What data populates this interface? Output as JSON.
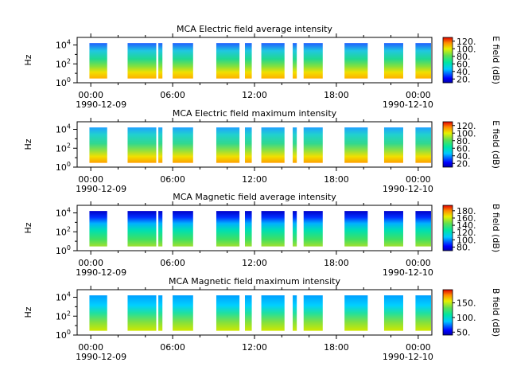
{
  "chart_data": {
    "type": "heatmap",
    "x_ticks": [
      "00:00",
      "06:00",
      "12:00",
      "18:00",
      "00:00"
    ],
    "x_range_hours": [
      -1,
      25
    ],
    "y_ticks": [
      {
        "base": "10",
        "exp": "0"
      },
      {
        "base": "10",
        "exp": "2"
      },
      {
        "base": "10",
        "exp": "4"
      }
    ],
    "y_range_log10": [
      0,
      4.8
    ],
    "x_label_left": "1990-12-09",
    "x_label_right": "1990-12-10",
    "ylabel": "Hz",
    "data_intervals_hours": [
      [
        -0.1,
        1.2
      ],
      [
        2.7,
        4.8
      ],
      [
        4.95,
        5.25
      ],
      [
        6.0,
        7.5
      ],
      [
        9.2,
        10.9
      ],
      [
        11.3,
        11.8
      ],
      [
        12.5,
        14.2
      ],
      [
        14.8,
        15.1
      ],
      [
        15.6,
        17.0
      ],
      [
        18.6,
        20.3
      ],
      [
        21.5,
        22.9
      ],
      [
        23.8,
        25.0
      ]
    ],
    "panels": [
      {
        "title": "MCA  Electric field average intensity",
        "colorbar_label": "E field (dB)",
        "cbar_ticks": [
          "120.",
          "100.",
          "80.",
          "60.",
          "40.",
          "20."
        ],
        "cbar_values": [
          120,
          100,
          80,
          60,
          40,
          20
        ],
        "zlim": [
          10,
          130
        ]
      },
      {
        "title": "MCA  Electric field maximum intensity",
        "colorbar_label": "E field (dB)",
        "cbar_ticks": [
          "120.",
          "100.",
          "80.",
          "60.",
          "40.",
          "20."
        ],
        "cbar_values": [
          120,
          100,
          80,
          60,
          40,
          20
        ],
        "zlim": [
          10,
          130
        ]
      },
      {
        "title": "MCA  Magnetic field average intensity",
        "colorbar_label": "B field (dB)",
        "cbar_ticks": [
          "180.",
          "160.",
          "140.",
          "120.",
          "100.",
          "80."
        ],
        "cbar_values": [
          180,
          160,
          140,
          120,
          100,
          80
        ],
        "zlim": [
          70,
          195
        ]
      },
      {
        "title": "MCA  Magnetic field maximum intensity",
        "colorbar_label": "B field (dB)",
        "cbar_ticks": [
          "150.",
          "100.",
          "50."
        ],
        "cbar_values": [
          150,
          100,
          50
        ],
        "zlim": [
          40,
          195
        ]
      }
    ]
  }
}
